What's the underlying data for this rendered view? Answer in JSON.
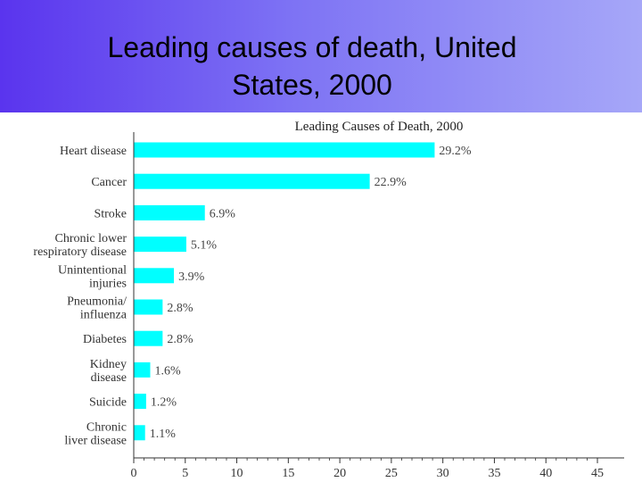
{
  "slide": {
    "title_line1": "Leading causes of death, United",
    "title_line2": "States, 2000"
  },
  "chart_data": {
    "type": "bar",
    "orientation": "horizontal",
    "title": "Leading Causes of Death, 2000",
    "categories": [
      [
        "Heart disease"
      ],
      [
        "Cancer"
      ],
      [
        "Stroke"
      ],
      [
        "Chronic lower",
        "respiratory disease"
      ],
      [
        "Unintentional",
        "injuries"
      ],
      [
        "Pneumonia/",
        "influenza"
      ],
      [
        "Diabetes"
      ],
      [
        "Kidney",
        "disease"
      ],
      [
        "Suicide"
      ],
      [
        "Chronic",
        "liver disease"
      ]
    ],
    "values": [
      29.2,
      22.9,
      6.9,
      5.1,
      3.9,
      2.8,
      2.8,
      1.6,
      1.2,
      1.1
    ],
    "value_labels": [
      "29.2%",
      "22.9%",
      "6.9%",
      "5.1%",
      "3.9%",
      "2.8%",
      "2.8%",
      "1.6%",
      "1.2%",
      "1.1%"
    ],
    "xlim": [
      0,
      45
    ],
    "xticks": [
      0,
      5,
      10,
      15,
      20,
      25,
      30,
      35,
      40,
      45
    ],
    "grid": false,
    "bar_color": "#00ffff"
  }
}
